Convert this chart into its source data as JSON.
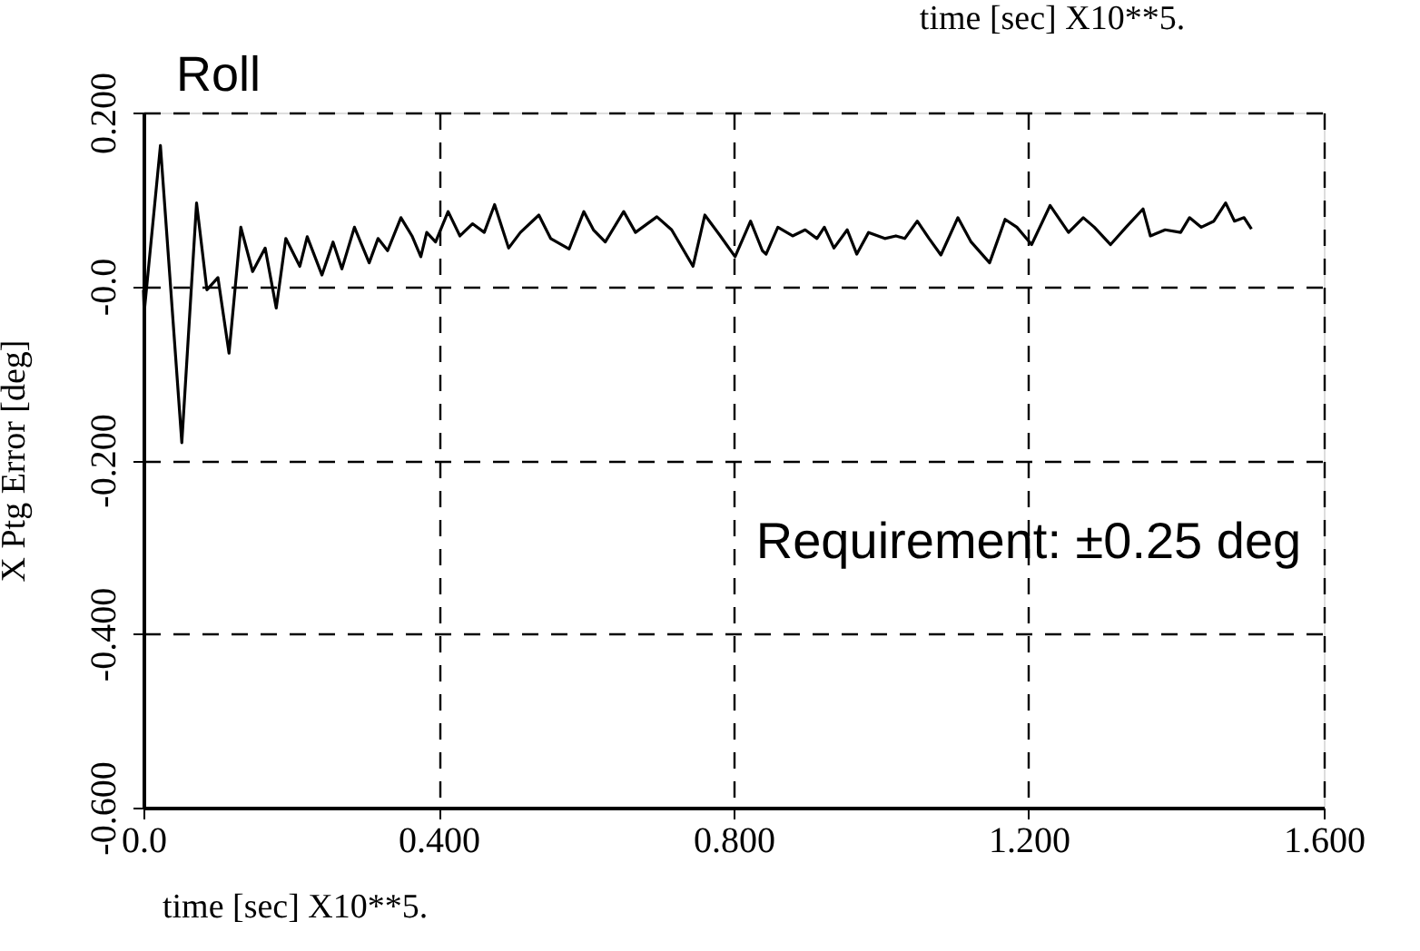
{
  "chart_data": {
    "type": "line",
    "title": "Roll",
    "xlabel": "time [sec]  X10**5.",
    "ylabel": "X Ptg Error [deg]",
    "annotations": [
      "Requirement:  ±0.25 deg",
      "time [sec]  X10**5."
    ],
    "xlim": [
      0,
      1.6
    ],
    "ylim": [
      -0.6,
      0.2
    ],
    "xticks": [
      {
        "value": 0,
        "label": "0.0"
      },
      {
        "value": 0.4,
        "label": "0.400"
      },
      {
        "value": 0.8,
        "label": "0.800"
      },
      {
        "value": 1.2,
        "label": "1.200"
      },
      {
        "value": 1.6,
        "label": "1.600"
      }
    ],
    "yticks": [
      {
        "value": -0.6,
        "label": "-0.600"
      },
      {
        "value": -0.4,
        "label": "-0.400"
      },
      {
        "value": -0.2,
        "label": "-0.200"
      },
      {
        "value": 0,
        "label": "-0.0"
      },
      {
        "value": 0.2,
        "label": "0.200"
      }
    ],
    "grid": true,
    "marker": "none",
    "line_style": "solid",
    "series": [
      {
        "color": "#000000",
        "x": [
          0,
          0.001,
          0.023,
          0.052,
          0.072,
          0.086,
          0.101,
          0.116,
          0.132,
          0.148,
          0.165,
          0.18,
          0.193,
          0.212,
          0.222,
          0.242,
          0.257,
          0.269,
          0.286,
          0.306,
          0.318,
          0.331,
          0.349,
          0.364,
          0.376,
          0.384,
          0.396,
          0.413,
          0.429,
          0.446,
          0.462,
          0.476,
          0.495,
          0.511,
          0.536,
          0.552,
          0.577,
          0.597,
          0.61,
          0.626,
          0.651,
          0.667,
          0.696,
          0.716,
          0.745,
          0.761,
          0.782,
          0.802,
          0.823,
          0.839,
          0.844,
          0.86,
          0.88,
          0.897,
          0.913,
          0.923,
          0.936,
          0.954,
          0.967,
          0.983,
          1.005,
          1.02,
          1.032,
          1.049,
          1.065,
          1.081,
          1.104,
          1.122,
          1.147,
          1.168,
          1.184,
          1.204,
          1.229,
          1.254,
          1.274,
          1.289,
          1.311,
          1.332,
          1.355,
          1.365,
          1.385,
          1.406,
          1.418,
          1.434,
          1.451,
          1.467,
          1.479,
          1.492,
          1.502
        ],
        "values": [
          -0.004,
          -0.03,
          0.162,
          -0.18,
          0.096,
          -0.004,
          0.01,
          -0.077,
          0.068,
          0.017,
          0.044,
          -0.025,
          0.055,
          0.023,
          0.057,
          0.013,
          0.051,
          0.02,
          0.068,
          0.027,
          0.055,
          0.041,
          0.079,
          0.058,
          0.034,
          0.062,
          0.051,
          0.086,
          0.058,
          0.072,
          0.062,
          0.094,
          0.044,
          0.062,
          0.082,
          0.055,
          0.043,
          0.086,
          0.065,
          0.051,
          0.086,
          0.062,
          0.08,
          0.065,
          0.023,
          0.082,
          0.058,
          0.034,
          0.075,
          0.041,
          0.037,
          0.068,
          0.058,
          0.065,
          0.055,
          0.068,
          0.044,
          0.065,
          0.037,
          0.062,
          0.055,
          0.058,
          0.055,
          0.075,
          0.055,
          0.036,
          0.079,
          0.051,
          0.027,
          0.077,
          0.068,
          0.048,
          0.093,
          0.062,
          0.079,
          0.068,
          0.048,
          0.068,
          0.089,
          0.058,
          0.065,
          0.062,
          0.079,
          0.068,
          0.075,
          0.096,
          0.075,
          0.079,
          0.066
        ]
      }
    ]
  }
}
